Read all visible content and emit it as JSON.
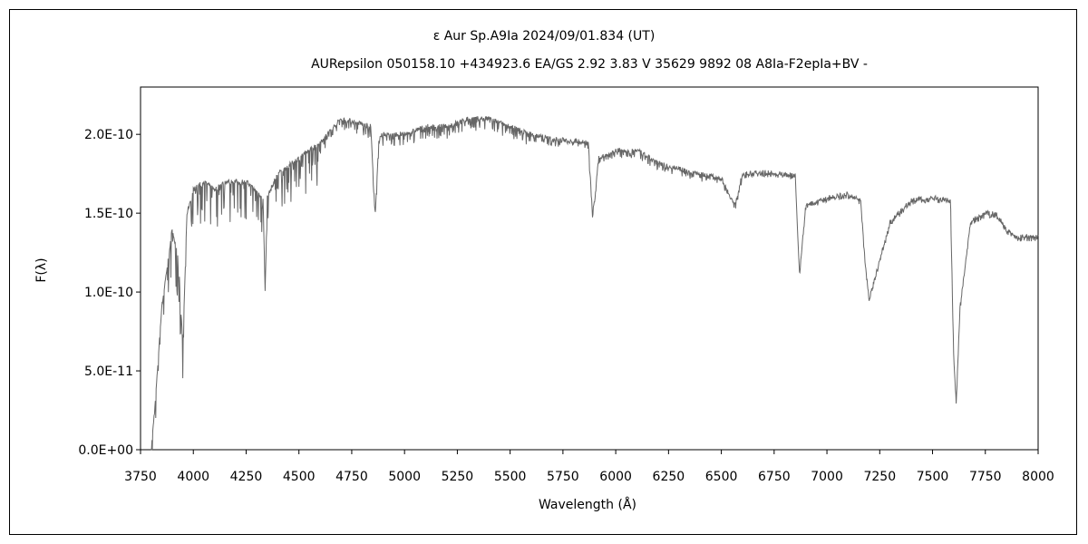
{
  "chart_data": {
    "type": "line",
    "title": "ε  Aur   Sp.A9Ia   2024/09/01.834 (UT)",
    "subtitle": "AURepsilon 050158.10 +434923.6 EA/GS 2.92 3.83 V 35629 9892 08 A8Ia-F2epIa+BV -",
    "xlabel": "Wavelength (Å)",
    "ylabel": "F(λ)",
    "xlim": [
      3750,
      8000
    ],
    "ylim": [
      0,
      2.3e-10
    ],
    "xticks": [
      "3750",
      "4000",
      "4250",
      "4500",
      "4750",
      "5000",
      "5250",
      "5500",
      "5750",
      "6000",
      "6250",
      "6500",
      "6750",
      "7000",
      "7250",
      "7500",
      "7750",
      "8000"
    ],
    "yticks": [
      "0.0E+00",
      "5.0E-11",
      "1.0E-10",
      "1.5E-10",
      "2.0E-10"
    ],
    "ytick_values": [
      0,
      5e-11,
      1e-10,
      1.5e-10,
      2e-10
    ],
    "grid": false,
    "line_color": "#666666",
    "y_unit": 1e-10,
    "series": [
      {
        "name": "spectrum",
        "points": [
          [
            3800,
            0
          ],
          [
            3820,
            0.3
          ],
          [
            3850,
            0.9
          ],
          [
            3870,
            1.1
          ],
          [
            3900,
            1.4
          ],
          [
            3930,
            1.2
          ],
          [
            3950,
            0.65
          ],
          [
            3970,
            1.5
          ],
          [
            4000,
            1.65
          ],
          [
            4050,
            1.7
          ],
          [
            4100,
            1.65
          ],
          [
            4150,
            1.7
          ],
          [
            4250,
            1.7
          ],
          [
            4330,
            1.6
          ],
          [
            4340,
            1.0
          ],
          [
            4350,
            1.6
          ],
          [
            4400,
            1.75
          ],
          [
            4500,
            1.85
          ],
          [
            4600,
            1.95
          ],
          [
            4700,
            2.1
          ],
          [
            4840,
            2.05
          ],
          [
            4861,
            1.48
          ],
          [
            4880,
            2.0
          ],
          [
            5000,
            2.0
          ],
          [
            5100,
            2.05
          ],
          [
            5200,
            2.05
          ],
          [
            5300,
            2.1
          ],
          [
            5400,
            2.1
          ],
          [
            5500,
            2.05
          ],
          [
            5600,
            2.0
          ],
          [
            5700,
            1.97
          ],
          [
            5870,
            1.95
          ],
          [
            5890,
            1.48
          ],
          [
            5920,
            1.85
          ],
          [
            6000,
            1.9
          ],
          [
            6100,
            1.9
          ],
          [
            6200,
            1.82
          ],
          [
            6300,
            1.78
          ],
          [
            6400,
            1.75
          ],
          [
            6500,
            1.72
          ],
          [
            6563,
            1.55
          ],
          [
            6600,
            1.75
          ],
          [
            6700,
            1.76
          ],
          [
            6850,
            1.74
          ],
          [
            6870,
            1.12
          ],
          [
            6900,
            1.55
          ],
          [
            7000,
            1.6
          ],
          [
            7100,
            1.62
          ],
          [
            7160,
            1.58
          ],
          [
            7180,
            1.2
          ],
          [
            7200,
            0.95
          ],
          [
            7250,
            1.2
          ],
          [
            7300,
            1.45
          ],
          [
            7400,
            1.58
          ],
          [
            7500,
            1.6
          ],
          [
            7585,
            1.58
          ],
          [
            7600,
            0.6
          ],
          [
            7612,
            0.3
          ],
          [
            7630,
            0.9
          ],
          [
            7680,
            1.45
          ],
          [
            7750,
            1.5
          ],
          [
            7800,
            1.5
          ],
          [
            7850,
            1.4
          ],
          [
            7900,
            1.35
          ],
          [
            8000,
            1.35
          ]
        ]
      }
    ]
  }
}
